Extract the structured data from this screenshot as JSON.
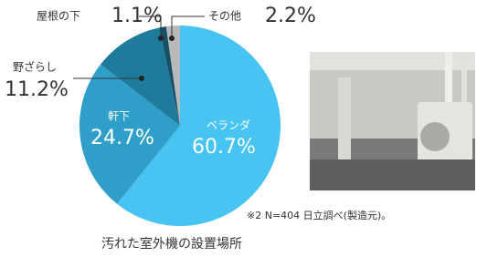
{
  "chart_data": {
    "type": "pie",
    "categories": [
      "ベランダ",
      "軒下",
      "野ざらし",
      "屋根の下",
      "その他"
    ],
    "values": [
      60.7,
      24.7,
      11.2,
      1.1,
      2.2
    ],
    "value_labels": [
      "60.7%",
      "24.7%",
      "11.2%",
      "1.1%",
      "2.2%"
    ],
    "colors": [
      "#47c4f1",
      "#2f9fc9",
      "#1f7b9b",
      "#174f66",
      "#b8b8b8"
    ],
    "footnote": "※2 N=404 日立調べ(製造元)。",
    "caption": "汚れた室外機の設置場所"
  }
}
